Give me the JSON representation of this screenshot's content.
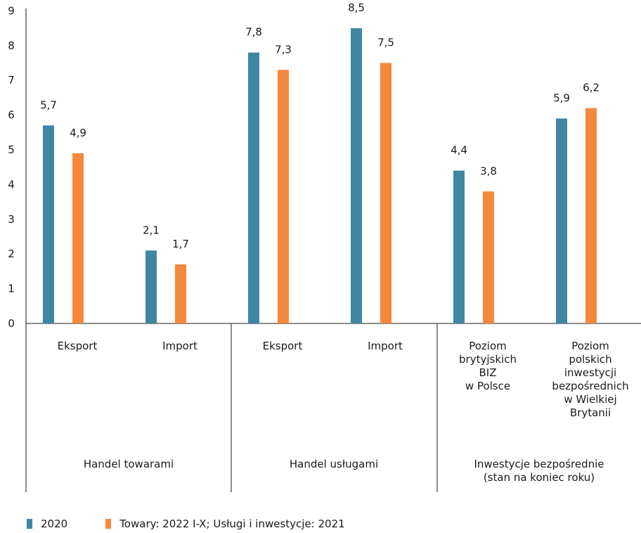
{
  "chart_data": {
    "type": "bar",
    "ylim": [
      0,
      9
    ],
    "yticks": [
      "0",
      "1",
      "2",
      "3",
      "4",
      "5",
      "6",
      "7",
      "8",
      "9"
    ],
    "categories": [
      {
        "label": [
          "Eksport"
        ],
        "group": 0
      },
      {
        "label": [
          "Import"
        ],
        "group": 0
      },
      {
        "label": [
          "Eksport"
        ],
        "group": 1
      },
      {
        "label": [
          "Import"
        ],
        "group": 1
      },
      {
        "label": [
          "Poziom",
          "brytyjskich",
          "BIZ",
          "w Polsce"
        ],
        "group": 2
      },
      {
        "label": [
          "Poziom",
          "polskich",
          "inwestycji",
          "bezpośrednich",
          "w Wielkiej",
          "Brytanii"
        ],
        "group": 2
      }
    ],
    "groups": [
      {
        "label": [
          "Handel towarami"
        ]
      },
      {
        "label": [
          "Handel usługami"
        ]
      },
      {
        "label": [
          "Inwestycje bezpośrednie",
          "(stan na koniec roku)"
        ]
      }
    ],
    "series": [
      {
        "name": "2020",
        "color": "#3f86a2",
        "values": [
          5.7,
          2.1,
          7.8,
          8.5,
          4.4,
          5.9
        ],
        "labels": [
          "5,7",
          "2,1",
          "7,8",
          "8,5",
          "4,4",
          "5,9"
        ]
      },
      {
        "name": "Towary: 2022 I-X; Usługi i inwestycje: 2021",
        "color": "#f5883a",
        "values": [
          4.9,
          1.7,
          7.3,
          7.5,
          3.8,
          6.2
        ],
        "labels": [
          "4,9",
          "1,7",
          "7,3",
          "7,5",
          "3,8",
          "6,2"
        ]
      }
    ]
  }
}
